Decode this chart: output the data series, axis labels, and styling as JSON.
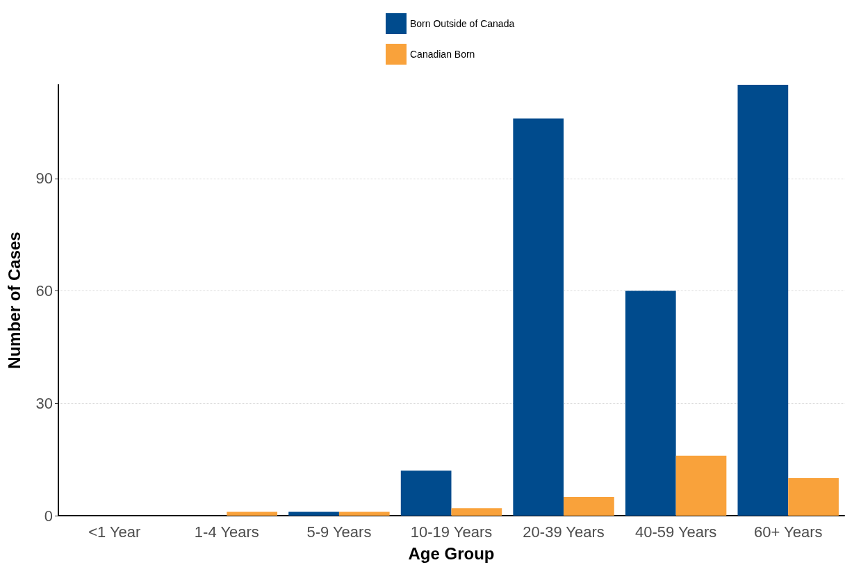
{
  "chart_data": {
    "type": "bar",
    "xlabel": "Age Group",
    "ylabel": "Number of Cases",
    "categories": [
      "<1 Year",
      "1-4 Years",
      "5-9 Years",
      "10-19 Years",
      "20-39 Years",
      "40-59 Years",
      "60+ Years"
    ],
    "series": [
      {
        "name": "Born Outside of Canada",
        "color": "#004b8d",
        "values": [
          0,
          0,
          1,
          12,
          106,
          60,
          115
        ]
      },
      {
        "name": "Canadian Born",
        "color": "#f9a23b",
        "values": [
          0,
          1,
          1,
          2,
          5,
          16,
          10
        ]
      }
    ],
    "ylim": [
      0,
      115
    ],
    "yticks": [
      0,
      30,
      60,
      90
    ],
    "grid": "y",
    "legend": "top"
  }
}
